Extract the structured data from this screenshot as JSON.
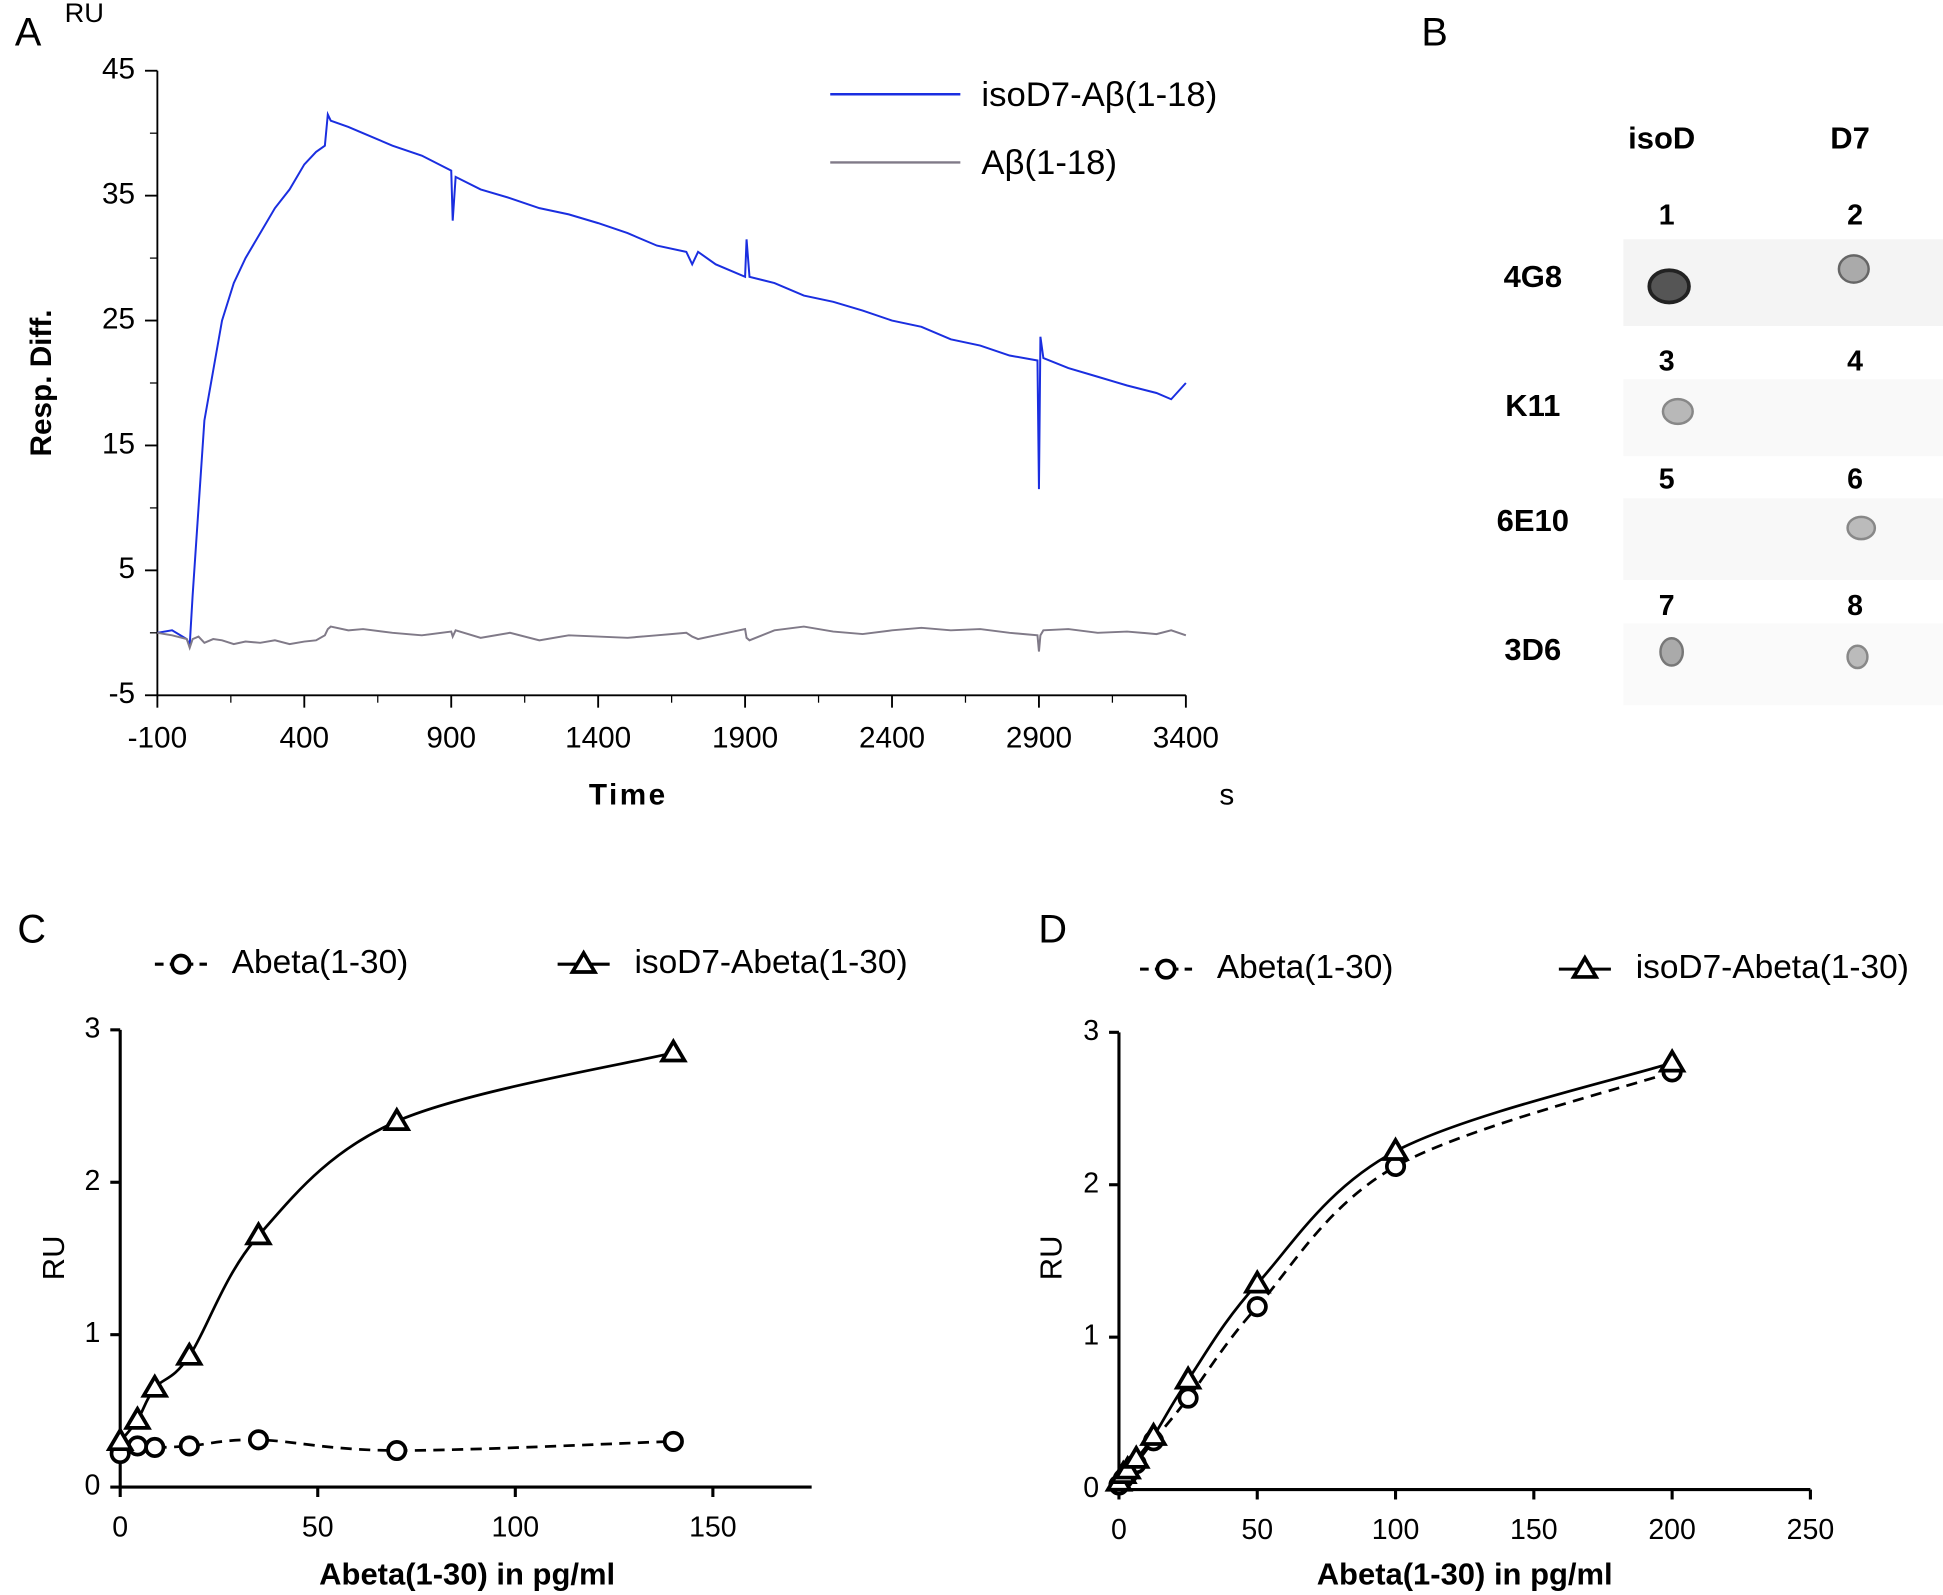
{
  "chart_data": [
    {
      "type": "line",
      "title": "A",
      "y_unit": "RU",
      "ylabel": "Resp. Diff.",
      "xlabel": "Time",
      "x_unit": "s",
      "xlim": [
        -100,
        3400
      ],
      "xticks": [
        -100,
        400,
        900,
        1400,
        1900,
        2400,
        2900,
        3400
      ],
      "ylim": [
        -5,
        45
      ],
      "yticks": [
        -5,
        5,
        15,
        25,
        35,
        45
      ],
      "x": [
        -100,
        -50,
        0,
        10,
        20,
        40,
        60,
        90,
        120,
        160,
        200,
        250,
        300,
        350,
        400,
        440,
        470,
        480,
        490,
        550,
        600,
        700,
        800,
        900,
        905,
        915,
        1000,
        1100,
        1200,
        1300,
        1400,
        1500,
        1600,
        1700,
        1720,
        1740,
        1800,
        1900,
        1905,
        1915,
        2000,
        2100,
        2200,
        2300,
        2400,
        2500,
        2600,
        2700,
        2800,
        2895,
        2900,
        2905,
        2915,
        3000,
        3100,
        3200,
        3300,
        3350,
        3400
      ],
      "series": [
        {
          "name": "isoD7-Aβ(1-18)",
          "color": "#1a2ee0",
          "values": [
            0,
            0.2,
            -0.5,
            -1,
            3,
            10,
            17,
            21,
            25,
            28,
            30,
            32,
            34,
            35.5,
            37.5,
            38.5,
            39,
            41.5,
            41,
            40.5,
            40,
            39,
            38.2,
            37,
            33,
            36.5,
            35.5,
            34.8,
            34,
            33.5,
            32.8,
            32,
            31,
            30.5,
            29.5,
            30.5,
            29.5,
            28.5,
            31.5,
            28.5,
            28,
            27,
            26.5,
            25.8,
            25,
            24.5,
            23.5,
            23,
            22.2,
            21.8,
            11.5,
            23.7,
            22,
            21.2,
            20.5,
            19.8,
            19.2,
            18.7,
            20
          ]
        },
        {
          "name": "Aβ(1-18)",
          "color": "#807a88",
          "values": [
            0,
            -0.2,
            -0.5,
            -1.2,
            -0.5,
            -0.3,
            -0.8,
            -0.5,
            -0.6,
            -0.9,
            -0.7,
            -0.8,
            -0.6,
            -0.9,
            -0.7,
            -0.6,
            -0.2,
            0.3,
            0.5,
            0.2,
            0.3,
            0,
            -0.2,
            0.1,
            -0.3,
            0.2,
            -0.4,
            0,
            -0.6,
            -0.2,
            -0.3,
            -0.4,
            -0.2,
            0,
            -0.3,
            -0.5,
            -0.2,
            0.3,
            -0.4,
            -0.6,
            0.2,
            0.5,
            0.1,
            -0.1,
            0.2,
            0.4,
            0.2,
            0.3,
            0,
            -0.2,
            -1.5,
            -0.2,
            0.2,
            0.3,
            0,
            0.1,
            -0.1,
            0.2,
            -0.2
          ]
        }
      ]
    },
    {
      "type": "dot_blot",
      "title": "B",
      "columns": [
        "isoD",
        "D7"
      ],
      "rows": [
        "4G8",
        "K11",
        "6E10",
        "3D6"
      ],
      "spot_labels": [
        [
          "1",
          "2"
        ],
        [
          "3",
          "4"
        ],
        [
          "5",
          "6"
        ],
        [
          "7",
          "8"
        ]
      ]
    },
    {
      "type": "scatter_fit",
      "title": "C",
      "ylabel": "RU",
      "xlabel": "Abeta(1-30) in pg/ml",
      "xlim": [
        0,
        175
      ],
      "xticks": [
        0,
        50,
        100,
        150
      ],
      "ylim": [
        0,
        3
      ],
      "yticks": [
        0,
        1,
        2,
        3
      ],
      "series": [
        {
          "name": "Abeta(1-30)",
          "color": "#000000",
          "marker": "circle",
          "line_style": "dashed",
          "x": [
            0,
            4.375,
            8.75,
            17.5,
            35,
            70,
            140
          ],
          "values": [
            0.22,
            0.27,
            0.26,
            0.27,
            0.31,
            0.24,
            0.3
          ]
        },
        {
          "name": "isoD7-Abeta(1-30)",
          "color": "#000000",
          "marker": "triangle",
          "line_style": "solid",
          "x": [
            0,
            4.375,
            8.75,
            17.5,
            35,
            70,
            140
          ],
          "values": [
            0.3,
            0.44,
            0.65,
            0.86,
            1.65,
            2.4,
            2.85
          ]
        }
      ]
    },
    {
      "type": "scatter_fit",
      "title": "D",
      "ylabel": "RU",
      "xlabel": "Abeta(1-30) in pg/ml",
      "xlim": [
        0,
        250
      ],
      "xticks": [
        0,
        50,
        100,
        150,
        200,
        250
      ],
      "ylim": [
        0,
        3
      ],
      "yticks": [
        0,
        1,
        2,
        3
      ],
      "series": [
        {
          "name": "Abeta(1-30)",
          "color": "#000000",
          "marker": "circle",
          "line_style": "dashed",
          "x": [
            0,
            1.5625,
            3.125,
            6.25,
            12.5,
            25,
            50,
            100,
            200
          ],
          "values": [
            0.03,
            0.07,
            0.1,
            0.17,
            0.32,
            0.6,
            1.2,
            2.12,
            2.74
          ]
        },
        {
          "name": "isoD7-Abeta(1-30)",
          "color": "#000000",
          "marker": "triangle",
          "line_style": "solid",
          "x": [
            0,
            1.5625,
            3.125,
            6.25,
            12.5,
            25,
            50,
            100,
            200
          ],
          "values": [
            0.05,
            0.1,
            0.13,
            0.2,
            0.35,
            0.72,
            1.35,
            2.22,
            2.8
          ]
        }
      ]
    }
  ]
}
